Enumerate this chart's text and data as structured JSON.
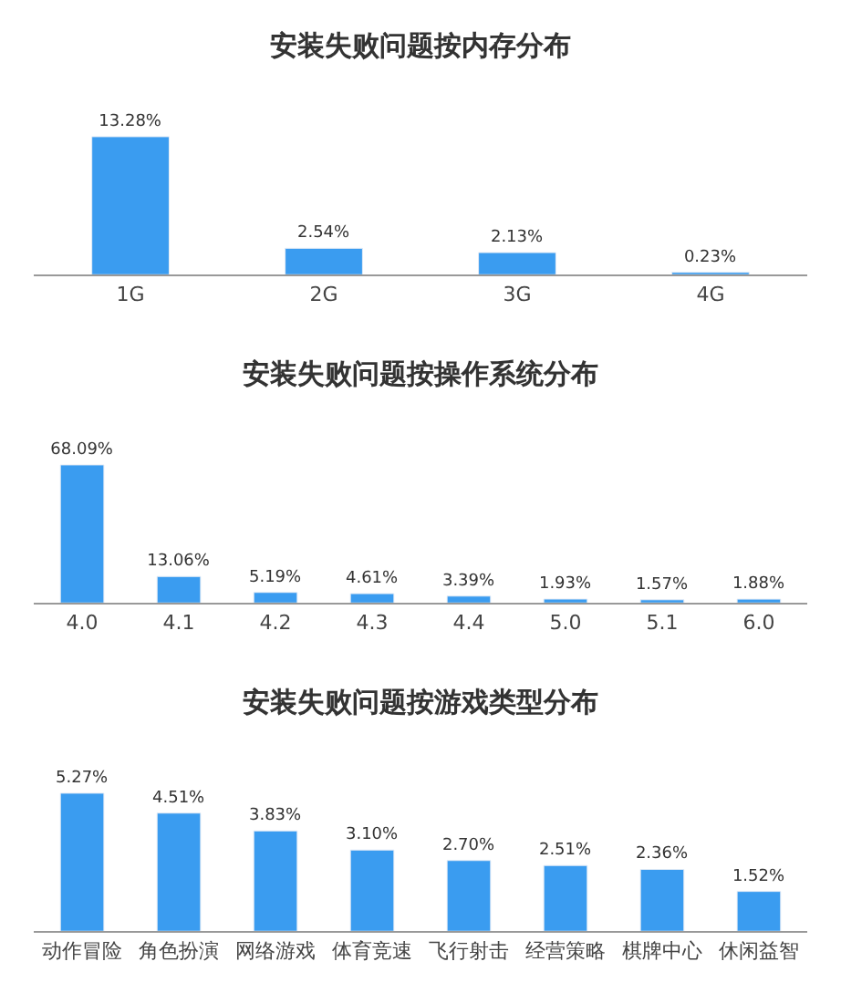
{
  "chart_data": [
    {
      "type": "bar",
      "title": "安装失败问题按内存分布",
      "categories": [
        "1G",
        "2G",
        "3G",
        "4G"
      ],
      "values": [
        13.28,
        2.54,
        2.13,
        0.23
      ],
      "value_labels": [
        "13.28%",
        "2.54%",
        "2.13%",
        "0.23%"
      ],
      "color": "#3a9cf0"
    },
    {
      "type": "bar",
      "title": "安装失败问题按操作系统分布",
      "categories": [
        "4.0",
        "4.1",
        "4.2",
        "4.3",
        "4.4",
        "5.0",
        "5.1",
        "6.0"
      ],
      "values": [
        68.09,
        13.06,
        5.19,
        4.61,
        3.39,
        1.93,
        1.57,
        1.88
      ],
      "value_labels": [
        "68.09%",
        "13.06%",
        "5.19%",
        "4.61%",
        "3.39%",
        "1.93%",
        "1.57%",
        "1.88%"
      ],
      "color": "#3a9cf0"
    },
    {
      "type": "bar",
      "title": "安装失败问题按游戏类型分布",
      "categories": [
        "动作冒险",
        "角色扮演",
        "网络游戏",
        "体育竞速",
        "飞行射击",
        "经营策略",
        "棋牌中心",
        "休闲益智"
      ],
      "values": [
        5.27,
        4.51,
        3.83,
        3.1,
        2.7,
        2.51,
        2.36,
        1.52
      ],
      "value_labels": [
        "5.27%",
        "4.51%",
        "3.83%",
        "3.10%",
        "2.70%",
        "2.51%",
        "2.36%",
        "1.52%"
      ],
      "color": "#3a9cf0"
    }
  ]
}
